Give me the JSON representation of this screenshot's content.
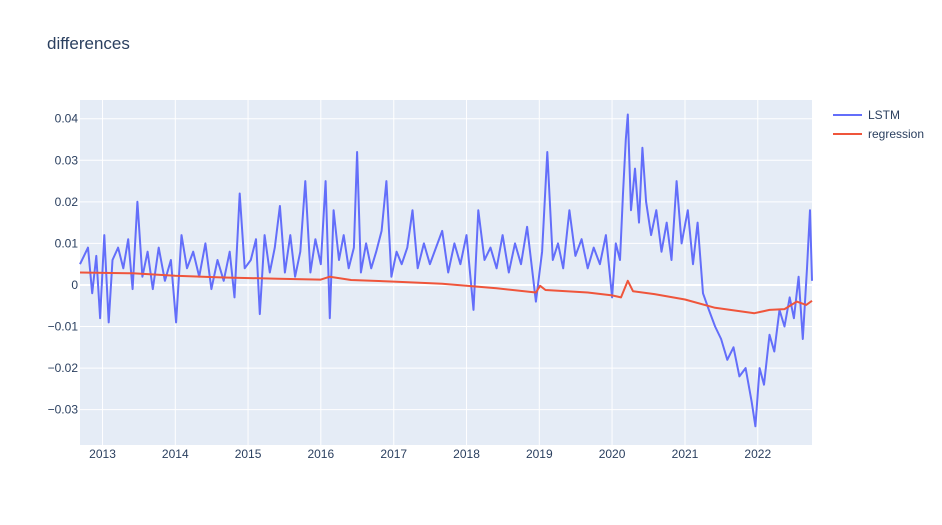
{
  "chart_data": {
    "type": "line",
    "title": "differences",
    "xlabel": "",
    "ylabel": "",
    "xlim": [
      "2012-09-10",
      "2022-09-30"
    ],
    "ylim": [
      -0.0385,
      0.0445
    ],
    "grid": true,
    "legend_position": "top-right",
    "x_ticks": [
      "2013",
      "2014",
      "2015",
      "2016",
      "2017",
      "2018",
      "2019",
      "2020",
      "2021",
      "2022"
    ],
    "y_ticks": [
      0.04,
      0.03,
      0.02,
      0.01,
      0,
      -0.01,
      -0.02,
      -0.03
    ],
    "y_tick_labels": [
      "0.04",
      "0.03",
      "0.02",
      "0.01",
      "0",
      "−0.01",
      "−0.02",
      "−0.03"
    ],
    "series": [
      {
        "name": "LSTM",
        "color": "#636efa",
        "points": [
          [
            "2012-09-10",
            0.005
          ],
          [
            "2012-10-20",
            0.009
          ],
          [
            "2012-11-10",
            -0.002
          ],
          [
            "2012-12-01",
            0.007
          ],
          [
            "2012-12-20",
            -0.008
          ],
          [
            "2013-01-10",
            0.012
          ],
          [
            "2013-02-01",
            -0.009
          ],
          [
            "2013-02-20",
            0.006
          ],
          [
            "2013-03-20",
            0.009
          ],
          [
            "2013-04-15",
            0.004
          ],
          [
            "2013-05-10",
            0.011
          ],
          [
            "2013-06-01",
            -0.001
          ],
          [
            "2013-06-25",
            0.02
          ],
          [
            "2013-07-20",
            0.002
          ],
          [
            "2013-08-15",
            0.008
          ],
          [
            "2013-09-10",
            -0.001
          ],
          [
            "2013-10-10",
            0.009
          ],
          [
            "2013-11-10",
            0.001
          ],
          [
            "2013-12-10",
            0.006
          ],
          [
            "2014-01-05",
            -0.009
          ],
          [
            "2014-02-01",
            0.012
          ],
          [
            "2014-03-01",
            0.004
          ],
          [
            "2014-04-01",
            0.008
          ],
          [
            "2014-05-01",
            0.002
          ],
          [
            "2014-06-01",
            0.01
          ],
          [
            "2014-07-01",
            -0.001
          ],
          [
            "2014-08-01",
            0.006
          ],
          [
            "2014-09-01",
            0.001
          ],
          [
            "2014-10-01",
            0.008
          ],
          [
            "2014-10-25",
            -0.003
          ],
          [
            "2014-11-20",
            0.022
          ],
          [
            "2014-12-15",
            0.004
          ],
          [
            "2015-01-15",
            0.006
          ],
          [
            "2015-02-10",
            0.011
          ],
          [
            "2015-03-01",
            -0.007
          ],
          [
            "2015-03-25",
            0.012
          ],
          [
            "2015-04-20",
            0.003
          ],
          [
            "2015-05-15",
            0.009
          ],
          [
            "2015-06-10",
            0.019
          ],
          [
            "2015-07-05",
            0.003
          ],
          [
            "2015-08-01",
            0.012
          ],
          [
            "2015-08-25",
            0.002
          ],
          [
            "2015-09-20",
            0.008
          ],
          [
            "2015-10-15",
            0.025
          ],
          [
            "2015-11-10",
            0.003
          ],
          [
            "2015-12-05",
            0.011
          ],
          [
            "2016-01-01",
            0.005
          ],
          [
            "2016-01-25",
            0.025
          ],
          [
            "2016-02-15",
            -0.008
          ],
          [
            "2016-03-05",
            0.018
          ],
          [
            "2016-04-01",
            0.006
          ],
          [
            "2016-04-25",
            0.012
          ],
          [
            "2016-05-20",
            0.004
          ],
          [
            "2016-06-15",
            0.009
          ],
          [
            "2016-07-01",
            0.032
          ],
          [
            "2016-07-20",
            0.003
          ],
          [
            "2016-08-15",
            0.01
          ],
          [
            "2016-09-10",
            0.004
          ],
          [
            "2016-10-05",
            0.008
          ],
          [
            "2016-11-01",
            0.013
          ],
          [
            "2016-11-25",
            0.025
          ],
          [
            "2016-12-20",
            0.002
          ],
          [
            "2017-01-15",
            0.008
          ],
          [
            "2017-02-10",
            0.005
          ],
          [
            "2017-03-10",
            0.009
          ],
          [
            "2017-04-05",
            0.018
          ],
          [
            "2017-05-01",
            0.004
          ],
          [
            "2017-06-01",
            0.01
          ],
          [
            "2017-07-01",
            0.005
          ],
          [
            "2017-08-01",
            0.009
          ],
          [
            "2017-09-01",
            0.013
          ],
          [
            "2017-10-01",
            0.003
          ],
          [
            "2017-11-01",
            0.01
          ],
          [
            "2017-12-01",
            0.005
          ],
          [
            "2018-01-01",
            0.012
          ],
          [
            "2018-02-05",
            -0.006
          ],
          [
            "2018-03-01",
            0.018
          ],
          [
            "2018-04-01",
            0.006
          ],
          [
            "2018-05-01",
            0.009
          ],
          [
            "2018-06-01",
            0.004
          ],
          [
            "2018-07-01",
            0.012
          ],
          [
            "2018-08-01",
            0.003
          ],
          [
            "2018-09-01",
            0.01
          ],
          [
            "2018-10-01",
            0.005
          ],
          [
            "2018-11-01",
            0.014
          ],
          [
            "2018-12-15",
            -0.004
          ],
          [
            "2019-01-15",
            0.008
          ],
          [
            "2019-02-10",
            0.032
          ],
          [
            "2019-03-10",
            0.006
          ],
          [
            "2019-04-05",
            0.01
          ],
          [
            "2019-05-01",
            0.004
          ],
          [
            "2019-06-01",
            0.018
          ],
          [
            "2019-07-01",
            0.007
          ],
          [
            "2019-08-01",
            0.011
          ],
          [
            "2019-09-01",
            0.004
          ],
          [
            "2019-10-01",
            0.009
          ],
          [
            "2019-11-01",
            0.005
          ],
          [
            "2019-12-01",
            0.012
          ],
          [
            "2020-01-01",
            -0.003
          ],
          [
            "2020-01-20",
            0.01
          ],
          [
            "2020-02-10",
            0.006
          ],
          [
            "2020-02-25",
            0.022
          ],
          [
            "2020-03-10",
            0.035
          ],
          [
            "2020-03-20",
            0.041
          ],
          [
            "2020-04-05",
            0.018
          ],
          [
            "2020-04-25",
            0.028
          ],
          [
            "2020-05-15",
            0.015
          ],
          [
            "2020-06-01",
            0.033
          ],
          [
            "2020-06-20",
            0.02
          ],
          [
            "2020-07-15",
            0.012
          ],
          [
            "2020-08-10",
            0.018
          ],
          [
            "2020-09-05",
            0.008
          ],
          [
            "2020-10-01",
            0.015
          ],
          [
            "2020-10-25",
            0.006
          ],
          [
            "2020-11-20",
            0.025
          ],
          [
            "2020-12-15",
            0.01
          ],
          [
            "2021-01-15",
            0.018
          ],
          [
            "2021-02-10",
            0.005
          ],
          [
            "2021-03-05",
            0.015
          ],
          [
            "2021-04-01",
            -0.002
          ],
          [
            "2021-05-01",
            -0.006
          ],
          [
            "2021-06-01",
            -0.01
          ],
          [
            "2021-07-01",
            -0.013
          ],
          [
            "2021-08-01",
            -0.018
          ],
          [
            "2021-09-01",
            -0.015
          ],
          [
            "2021-10-01",
            -0.022
          ],
          [
            "2021-11-01",
            -0.02
          ],
          [
            "2021-12-01",
            -0.028
          ],
          [
            "2021-12-20",
            -0.034
          ],
          [
            "2022-01-10",
            -0.02
          ],
          [
            "2022-02-01",
            -0.024
          ],
          [
            "2022-03-01",
            -0.012
          ],
          [
            "2022-03-25",
            -0.016
          ],
          [
            "2022-04-20",
            -0.006
          ],
          [
            "2022-05-15",
            -0.01
          ],
          [
            "2022-06-10",
            -0.003
          ],
          [
            "2022-07-01",
            -0.008
          ],
          [
            "2022-07-25",
            0.002
          ],
          [
            "2022-08-15",
            -0.013
          ],
          [
            "2022-09-05",
            0.004
          ],
          [
            "2022-09-20",
            0.018
          ],
          [
            "2022-09-30",
            0.001
          ]
        ]
      },
      {
        "name": "regression",
        "color": "#ef553b",
        "points": [
          [
            "2012-09-10",
            0.003
          ],
          [
            "2013-06-01",
            0.0028
          ],
          [
            "2014-01-01",
            0.0022
          ],
          [
            "2014-09-01",
            0.0018
          ],
          [
            "2015-06-01",
            0.0015
          ],
          [
            "2016-01-01",
            0.0013
          ],
          [
            "2016-02-15",
            0.002
          ],
          [
            "2016-06-01",
            0.0012
          ],
          [
            "2017-01-01",
            0.0008
          ],
          [
            "2017-09-01",
            0.0003
          ],
          [
            "2018-06-01",
            -0.0008
          ],
          [
            "2018-12-15",
            -0.0018
          ],
          [
            "2019-01-05",
            -0.0002
          ],
          [
            "2019-02-01",
            -0.0012
          ],
          [
            "2019-09-01",
            -0.0018
          ],
          [
            "2020-01-01",
            -0.0025
          ],
          [
            "2020-02-15",
            -0.003
          ],
          [
            "2020-03-20",
            0.001
          ],
          [
            "2020-04-15",
            -0.0015
          ],
          [
            "2020-08-01",
            -0.0022
          ],
          [
            "2021-01-01",
            -0.0035
          ],
          [
            "2021-06-01",
            -0.0055
          ],
          [
            "2021-12-15",
            -0.0068
          ],
          [
            "2022-03-01",
            -0.006
          ],
          [
            "2022-05-15",
            -0.0058
          ],
          [
            "2022-07-15",
            -0.004
          ],
          [
            "2022-09-01",
            -0.0048
          ],
          [
            "2022-09-30",
            -0.0038
          ]
        ]
      }
    ]
  }
}
